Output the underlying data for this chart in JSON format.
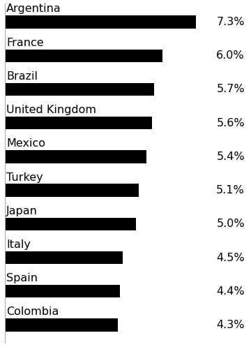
{
  "categories": [
    "Argentina",
    "France",
    "Brazil",
    "United Kingdom",
    "Mexico",
    "Turkey",
    "Japan",
    "Italy",
    "Spain",
    "Colombia"
  ],
  "values": [
    7.3,
    6.0,
    5.7,
    5.6,
    5.4,
    5.1,
    5.0,
    4.5,
    4.4,
    4.3
  ],
  "labels": [
    "7.3%",
    "6.0%",
    "5.7%",
    "5.6%",
    "5.4%",
    "5.1%",
    "5.0%",
    "4.5%",
    "4.4%",
    "4.3%"
  ],
  "bar_color": "#000000",
  "background_color": "#ffffff",
  "label_fontsize": 11.5,
  "value_fontsize": 11.5,
  "xlim": [
    0,
    9.2
  ],
  "bar_height": 0.38
}
